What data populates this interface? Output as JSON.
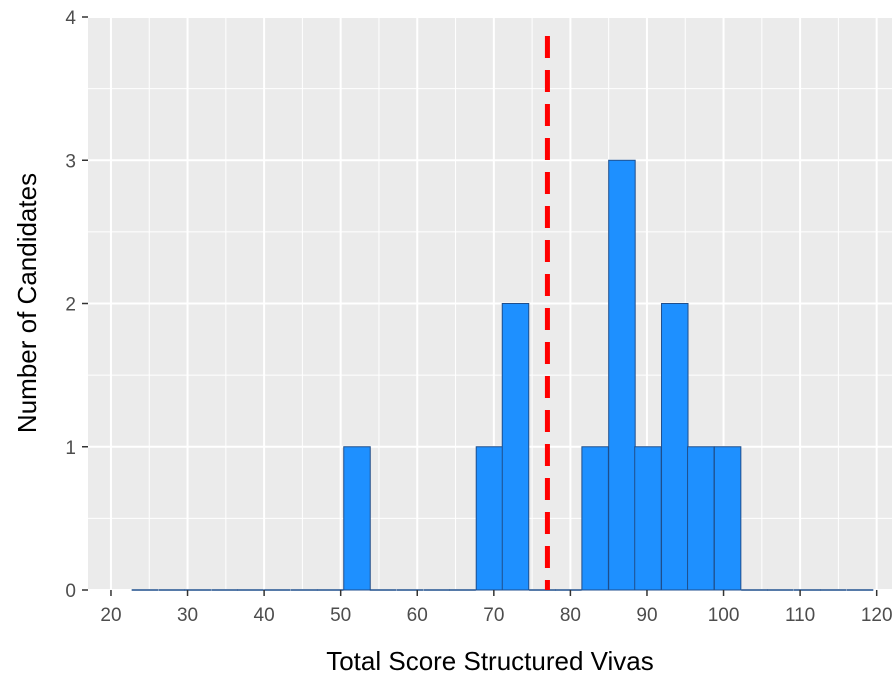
{
  "chart_data": {
    "type": "bar",
    "xlabel": "Total Score Structured Vivas",
    "ylabel": "Number of Candidates",
    "xlim": [
      17,
      122
    ],
    "ylim": [
      0,
      4
    ],
    "x_ticks": [
      20,
      30,
      40,
      50,
      60,
      70,
      80,
      90,
      100,
      110,
      120
    ],
    "x_tick_labels": [
      "20",
      "30",
      "40",
      "50",
      "60",
      "70",
      "80",
      "90",
      "100",
      "110",
      "120"
    ],
    "y_ticks": [
      0,
      1,
      2,
      3,
      4
    ],
    "y_tick_labels": [
      "0",
      "1",
      "2",
      "3",
      "4"
    ],
    "grid": true,
    "bin_width": 3.46,
    "bins": [
      {
        "start": 22.7,
        "count": 0
      },
      {
        "start": 26.2,
        "count": 0
      },
      {
        "start": 29.6,
        "count": 0
      },
      {
        "start": 33.1,
        "count": 0
      },
      {
        "start": 36.5,
        "count": 0
      },
      {
        "start": 40.0,
        "count": 0
      },
      {
        "start": 43.5,
        "count": 0
      },
      {
        "start": 46.9,
        "count": 0
      },
      {
        "start": 50.4,
        "count": 1
      },
      {
        "start": 53.8,
        "count": 0
      },
      {
        "start": 57.3,
        "count": 0
      },
      {
        "start": 60.8,
        "count": 0
      },
      {
        "start": 64.2,
        "count": 0
      },
      {
        "start": 67.7,
        "count": 1
      },
      {
        "start": 71.1,
        "count": 2
      },
      {
        "start": 74.6,
        "count": 0
      },
      {
        "start": 78.0,
        "count": 0
      },
      {
        "start": 81.5,
        "count": 1
      },
      {
        "start": 85.0,
        "count": 3
      },
      {
        "start": 88.4,
        "count": 1
      },
      {
        "start": 91.9,
        "count": 2
      },
      {
        "start": 95.3,
        "count": 1
      },
      {
        "start": 98.8,
        "count": 1
      },
      {
        "start": 102.3,
        "count": 0
      },
      {
        "start": 105.7,
        "count": 0
      },
      {
        "start": 109.2,
        "count": 0
      },
      {
        "start": 112.6,
        "count": 0
      },
      {
        "start": 116.1,
        "count": 0
      }
    ],
    "reference_line": {
      "x": 77.0,
      "style": "dashed"
    },
    "colors": {
      "bar_fill": "#1e90ff",
      "bar_outline": "#1f4e8c",
      "reference_line": "#ff0000",
      "panel_background": "#ebebeb",
      "grid": "#ffffff"
    }
  }
}
